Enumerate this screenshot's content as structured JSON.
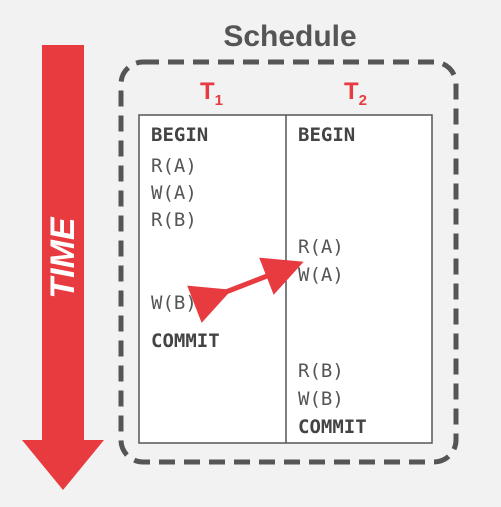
{
  "title": "Schedule",
  "time_label": "TIME",
  "transactions": [
    {
      "letter": "T",
      "sub": "1"
    },
    {
      "letter": "T",
      "sub": "2"
    }
  ],
  "t1_ops": [
    "BEGIN",
    "R(A)",
    "W(A)",
    "R(B)",
    "W(B)",
    "COMMIT"
  ],
  "t2_ops": [
    "BEGIN",
    "R(A)",
    "W(A)",
    "R(B)",
    "W(B)",
    "COMMIT"
  ],
  "colors": {
    "accent": "#e83b3f",
    "text": "#555555",
    "border": "#555555",
    "background": "#f2f2f2"
  }
}
